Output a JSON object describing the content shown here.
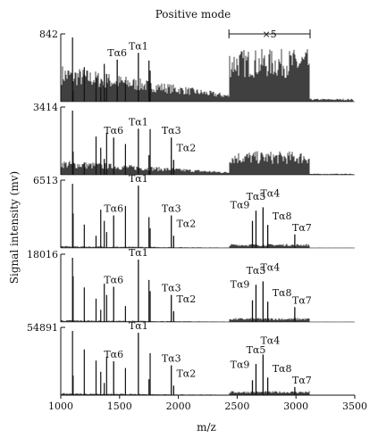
{
  "chart_data": {
    "type": "line",
    "title": "Positive mode",
    "xlabel": "m/z",
    "ylabel": "Signal intensity (mv)",
    "xlim": [
      1000,
      3500
    ],
    "x_ticks": [
      1000,
      1500,
      2000,
      2500,
      3000,
      3500
    ],
    "magnification": {
      "label": "×5",
      "x_range": [
        2430,
        3120
      ],
      "panel": 1
    },
    "panels": [
      {
        "ymax": "842",
        "background": "high",
        "peaks": [
          {
            "label": "Tα6",
            "mz": 1480,
            "rel": 0.62
          },
          {
            "label": "Tα1",
            "mz": 1660,
            "rel": 0.72
          }
        ]
      },
      {
        "ymax": "3414",
        "background": "medium",
        "peaks": [
          {
            "label": "Tα6",
            "mz": 1450,
            "rel": 0.55
          },
          {
            "label": "Tα1",
            "mz": 1660,
            "rel": 0.68
          },
          {
            "label": "Tα3",
            "mz": 1940,
            "rel": 0.55
          },
          {
            "label": "Tα2",
            "mz": 1960,
            "rel": 0.22
          }
        ]
      },
      {
        "ymax": "6513",
        "background": "low",
        "peaks": [
          {
            "label": "Tα6",
            "mz": 1450,
            "rel": 0.48
          },
          {
            "label": "Tα1",
            "mz": 1660,
            "rel": 0.92
          },
          {
            "label": "Tα3",
            "mz": 1940,
            "rel": 0.48
          },
          {
            "label": "Tα2",
            "mz": 1960,
            "rel": 0.18
          },
          {
            "label": "Tα9",
            "mz": 2630,
            "rel": 0.4
          },
          {
            "label": "Tα5",
            "mz": 2660,
            "rel": 0.55
          },
          {
            "label": "Tα4",
            "mz": 2720,
            "rel": 0.6
          },
          {
            "label": "Tα8",
            "mz": 2760,
            "rel": 0.34
          },
          {
            "label": "Tα7",
            "mz": 2990,
            "rel": 0.2
          }
        ]
      },
      {
        "ymax": "18016",
        "background": "low",
        "peaks": [
          {
            "label": "Tα6",
            "mz": 1450,
            "rel": 0.52
          },
          {
            "label": "Tα1",
            "mz": 1660,
            "rel": 0.92
          },
          {
            "label": "Tα3",
            "mz": 1940,
            "rel": 0.4
          },
          {
            "label": "Tα2",
            "mz": 1960,
            "rel": 0.16
          },
          {
            "label": "Tα9",
            "mz": 2630,
            "rel": 0.32
          },
          {
            "label": "Tα5",
            "mz": 2660,
            "rel": 0.55
          },
          {
            "label": "Tα4",
            "mz": 2720,
            "rel": 0.6
          },
          {
            "label": "Tα8",
            "mz": 2760,
            "rel": 0.3
          },
          {
            "label": "Tα7",
            "mz": 2990,
            "rel": 0.22
          }
        ]
      },
      {
        "ymax": "54891",
        "background": "low",
        "peaks": [
          {
            "label": "Tα6",
            "mz": 1450,
            "rel": 0.5
          },
          {
            "label": "Tα1",
            "mz": 1660,
            "rel": 0.92
          },
          {
            "label": "Tα3",
            "mz": 1940,
            "rel": 0.44
          },
          {
            "label": "Tα2",
            "mz": 1960,
            "rel": 0.14
          },
          {
            "label": "Tα9",
            "mz": 2630,
            "rel": 0.22
          },
          {
            "label": "Tα5",
            "mz": 2660,
            "rel": 0.46
          },
          {
            "label": "Tα4",
            "mz": 2720,
            "rel": 0.6
          },
          {
            "label": "Tα8",
            "mz": 2760,
            "rel": 0.26
          },
          {
            "label": "Tα7",
            "mz": 2990,
            "rel": 0.12
          }
        ]
      }
    ],
    "extra_peaks_mz": [
      1105,
      1200,
      1300,
      1340,
      1370,
      1390,
      1550,
      1750,
      1760
    ]
  }
}
